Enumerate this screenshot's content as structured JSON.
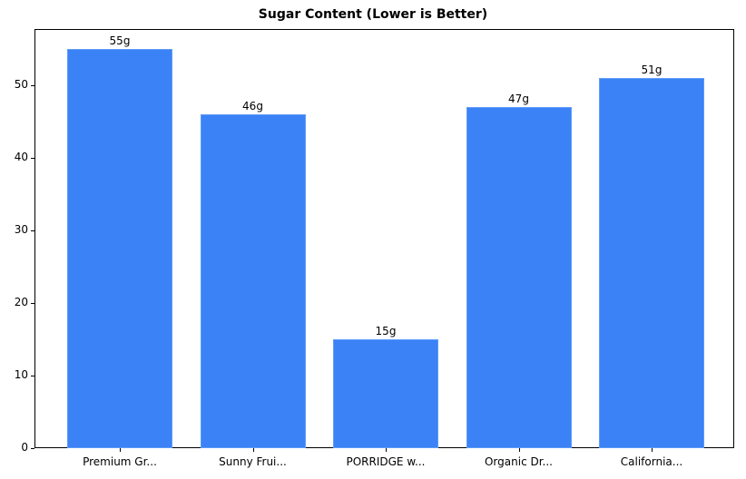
{
  "chart_data": {
    "type": "bar",
    "title": "Sugar Content (Lower is Better)",
    "xlabel": "",
    "ylabel": "",
    "categories": [
      "Premium Gr...",
      "Sunny Frui...",
      "PORRIDGE w...",
      "Organic Dr...",
      "California..."
    ],
    "values": [
      55,
      46,
      15,
      47,
      51
    ],
    "value_labels": [
      "55g",
      "46g",
      "15g",
      "47g",
      "51g"
    ],
    "ylim": [
      0,
      57.75
    ],
    "yticks": [
      0,
      10,
      20,
      30,
      40,
      50
    ],
    "grid": false,
    "legend": null,
    "bar_color": "#3b82f6"
  }
}
